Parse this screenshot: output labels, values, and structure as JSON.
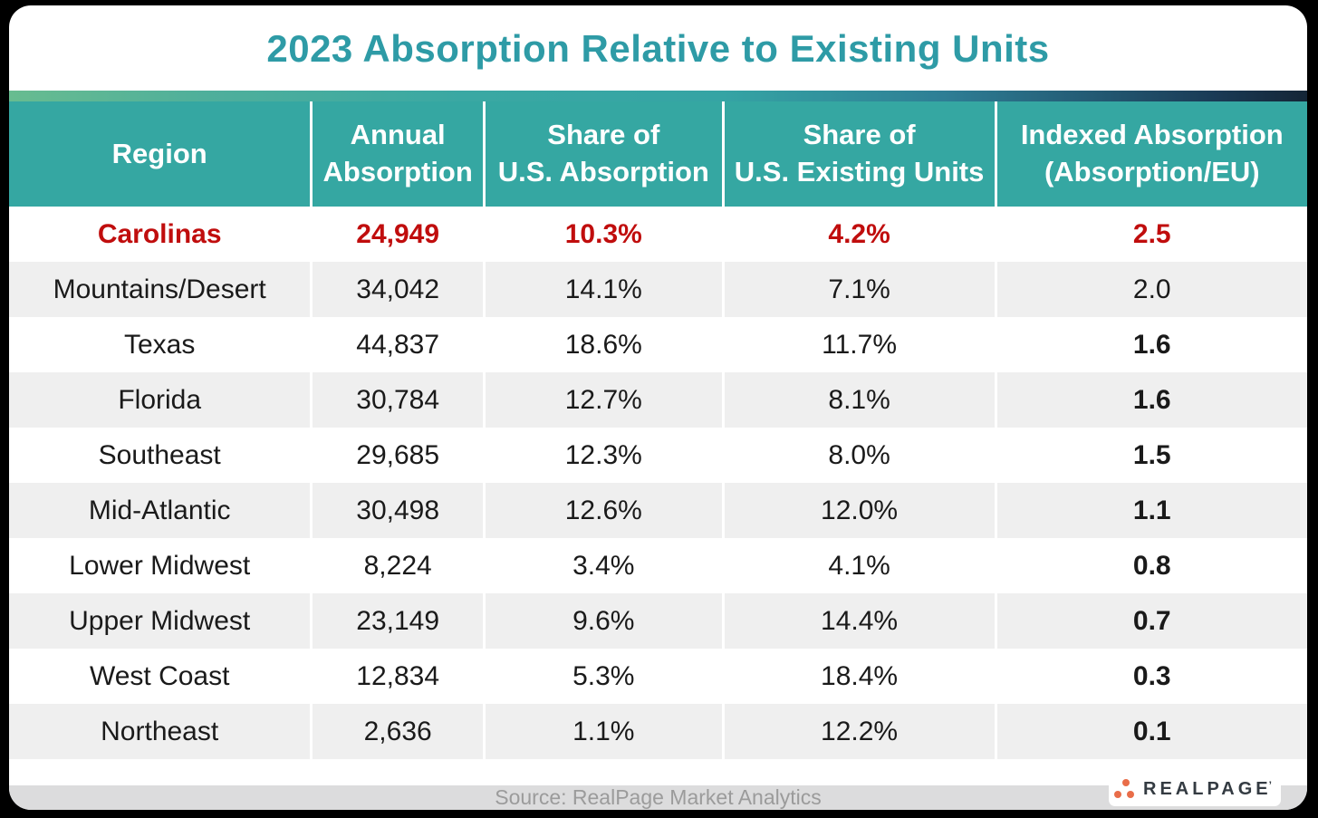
{
  "header": {
    "title": "2023 Absorption Relative to Existing Units"
  },
  "colors": {
    "title_teal": "#2E9BA6",
    "header_teal": "#35A7A2",
    "row_alt_gray": "#EFEFEF",
    "highlight_red": "#C00D0D",
    "text_dark": "#1A1A1A",
    "footer_strip": "#DCDCDD",
    "footer_text": "#9B9B9B",
    "logo_orange": "#E96D49",
    "logo_navy": "#343B42",
    "background_black": "#000000",
    "gradient_left_green": "#68BC90",
    "gradient_mid_teal": "#3AA8A3",
    "gradient_right_navy": "#142536"
  },
  "table": {
    "column_keys": [
      "region",
      "annual-absorption",
      "share-us-absorption",
      "share-us-existing-units",
      "indexed-absorption"
    ],
    "headers": [
      {
        "key": "region",
        "lines": [
          "Region"
        ]
      },
      {
        "key": "annual-absorption",
        "lines": [
          "Annual",
          "Absorption"
        ]
      },
      {
        "key": "share-us-absorption",
        "lines": [
          "Share of",
          "U.S. Absorption"
        ]
      },
      {
        "key": "share-us-existing-units",
        "lines": [
          "Share of",
          "U.S. Existing Units"
        ]
      },
      {
        "key": "indexed-absorption",
        "lines": [
          "Indexed Absorption",
          "(Absorption/EU)"
        ]
      }
    ]
  },
  "chart_data": {
    "type": "table",
    "title": "2023 Absorption Relative to Existing Units",
    "columns": [
      "Region",
      "Annual Absorption",
      "Share of U.S. Absorption",
      "Share of U.S. Existing Units",
      "Indexed Absorption (Absorption/EU)"
    ],
    "rows": [
      {
        "cells": [
          "Carolinas",
          "24,949",
          "10.3%",
          "4.2%",
          "2.5"
        ],
        "highlight": true,
        "indexed_bold": true
      },
      {
        "cells": [
          "Mountains/Desert",
          "34,042",
          "14.1%",
          "7.1%",
          "2.0"
        ],
        "highlight": false,
        "indexed_bold": false
      },
      {
        "cells": [
          "Texas",
          "44,837",
          "18.6%",
          "11.7%",
          "1.6"
        ],
        "highlight": false,
        "indexed_bold": true
      },
      {
        "cells": [
          "Florida",
          "30,784",
          "12.7%",
          "8.1%",
          "1.6"
        ],
        "highlight": false,
        "indexed_bold": true
      },
      {
        "cells": [
          "Southeast",
          "29,685",
          "12.3%",
          "8.0%",
          "1.5"
        ],
        "highlight": false,
        "indexed_bold": true
      },
      {
        "cells": [
          "Mid-Atlantic",
          "30,498",
          "12.6%",
          "12.0%",
          "1.1"
        ],
        "highlight": false,
        "indexed_bold": true
      },
      {
        "cells": [
          "Lower Midwest",
          "8,224",
          "3.4%",
          "4.1%",
          "0.8"
        ],
        "highlight": false,
        "indexed_bold": true
      },
      {
        "cells": [
          "Upper Midwest",
          "23,149",
          "9.6%",
          "14.4%",
          "0.7"
        ],
        "highlight": false,
        "indexed_bold": true
      },
      {
        "cells": [
          "West Coast",
          "12,834",
          "5.3%",
          "18.4%",
          "0.3"
        ],
        "highlight": false,
        "indexed_bold": true
      },
      {
        "cells": [
          "Northeast",
          "2,636",
          "1.1%",
          "12.2%",
          "0.1"
        ],
        "highlight": false,
        "indexed_bold": true
      }
    ],
    "highlighted_region": "Carolinas",
    "legend_position": "none",
    "grid": "alternating-row-shading"
  },
  "footer": {
    "source_text": "Source: RealPage Market Analytics",
    "logo": {
      "text": "REALPAGE",
      "mark": "’"
    }
  }
}
